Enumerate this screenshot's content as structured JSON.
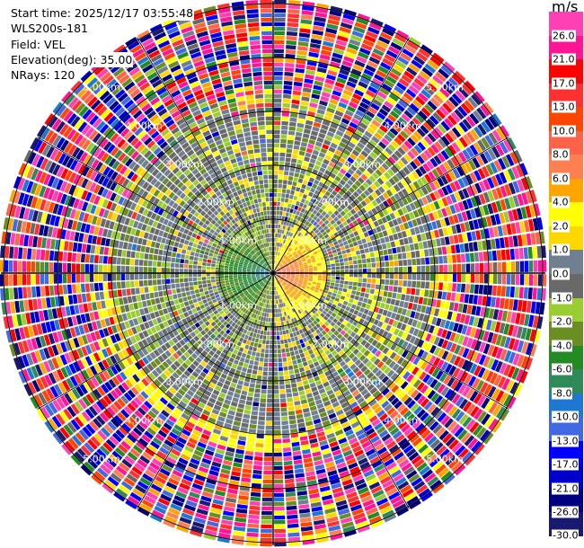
{
  "header": {
    "start_time": "Start time: 2025/12/17 03:55:48",
    "instrument": "WLS200s-181",
    "field": "Field: VEL",
    "elevation": "Elevation(deg): 35.00",
    "nrays": "NRays: 120"
  },
  "chart_data": {
    "type": "heatmap",
    "projection": "polar PPI",
    "field": "VEL",
    "units": "m/s",
    "n_rays": 120,
    "elevation_deg": 35.0,
    "range_rings": [
      "1.00km",
      "2.00km",
      "3.00km",
      "4.00km",
      "5.00km"
    ],
    "radial_spokes_deg": 30,
    "pattern": "within ~1 km: negative velocities (green/blue) to the west, positive (orange/yellow) to the east; beyond ~3 km: noisy values across the full range",
    "colorbar": {
      "unit": "m/s",
      "tick_labels": [
        "26.0",
        "21.0",
        "17.0",
        "13.0",
        "10.0",
        "8.0",
        "6.0",
        "4.0",
        "2.0",
        "1.0",
        "0.0",
        "-1.0",
        "-2.0",
        "-4.0",
        "-6.0",
        "-8.0",
        "-10.0",
        "-13.0",
        "-17.0",
        "-21.0",
        "-26.0",
        "-30.0"
      ],
      "colors": [
        "#ff40b4",
        "#ff1493",
        "#ff0000",
        "#ff3030",
        "#ff4500",
        "#ff6347",
        "#ff7f50",
        "#ffa500",
        "#ffff00",
        "#ffd700",
        "#708090",
        "#696969",
        "#9acd32",
        "#6b8e23",
        "#228b22",
        "#2e8b57",
        "#1e78d2",
        "#4169e1",
        "#0000ff",
        "#0000cd",
        "#000080",
        "#191970"
      ]
    }
  }
}
